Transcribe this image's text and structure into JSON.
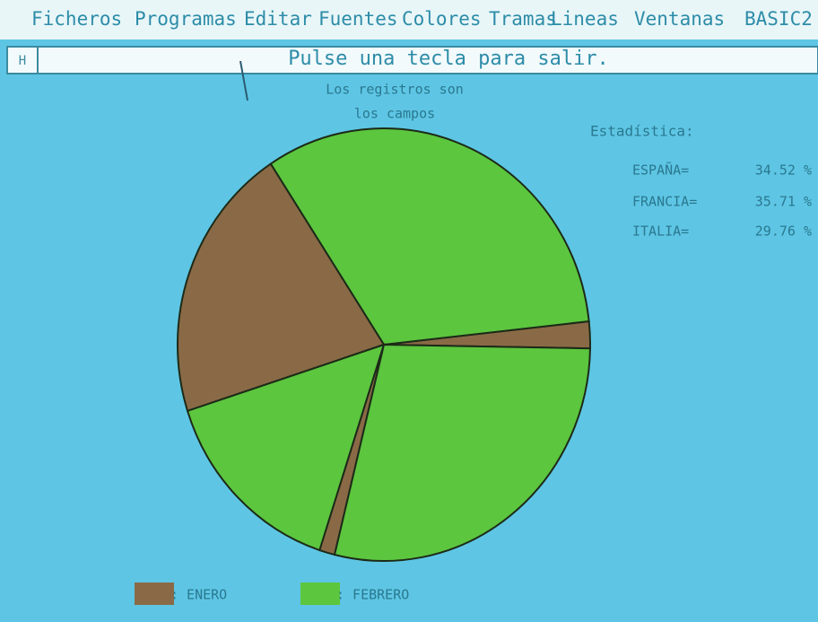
{
  "menu": [
    "Ficheros",
    "Programas",
    "Editar",
    "Fuentes",
    "Colores",
    "Tramas",
    "Lineas",
    "Ventanas",
    "BASIC2"
  ],
  "window": {
    "icon": "H",
    "title": "Pulse una tecla para salir."
  },
  "chart_data": {
    "type": "pie",
    "title": "Los registros son",
    "subtitle": "los campos",
    "stats_title": "Estadística:",
    "categories": [
      "ESPAÑA=",
      "FRANCIA=",
      "ITALIA="
    ],
    "values": [
      34.52,
      35.71,
      29.76
    ],
    "value_labels": [
      "34.52 %",
      "35.71 %",
      "29.76 %"
    ],
    "series": [
      {
        "name": ": ENERO",
        "color": "#8a6a46",
        "values": [
          2,
          20.71,
          1.2
        ]
      },
      {
        "name": ": FEBRERO",
        "color": "#5cc63e",
        "values": [
          32.52,
          15,
          28.56
        ]
      }
    ]
  }
}
